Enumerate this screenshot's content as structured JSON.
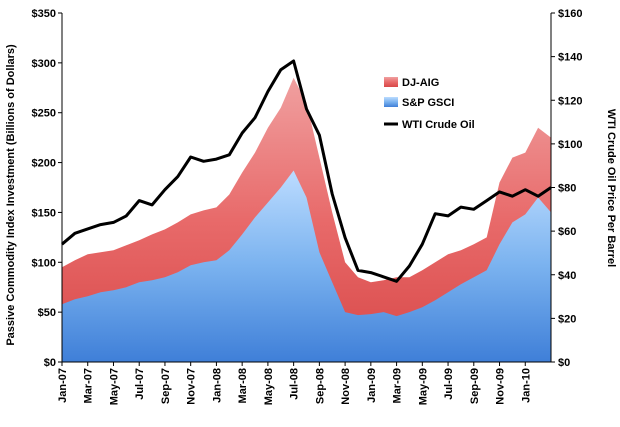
{
  "chart_data": {
    "type": "area",
    "title": "",
    "left_axis_label": "Passive Commodity Index Investment (Billions of Dollars)",
    "right_axis_label": "WTI Crude Oil Price Per Barrel",
    "left_ylim": [
      0,
      350
    ],
    "right_ylim": [
      0,
      160
    ],
    "left_ticks": [
      "$0",
      "$50",
      "$100",
      "$150",
      "$200",
      "$250",
      "$300",
      "$350"
    ],
    "right_ticks": [
      "$0",
      "$20",
      "$40",
      "$60",
      "$80",
      "$100",
      "$120",
      "$140",
      "$160"
    ],
    "x_tick_labels": [
      "Jan-07",
      "Mar-07",
      "May-07",
      "Jul-07",
      "Sep-07",
      "Nov-07",
      "Jan-08",
      "Mar-08",
      "May-08",
      "Jul-08",
      "Sep-08",
      "Nov-08",
      "Jan-09",
      "Mar-09",
      "May-09",
      "Jul-09",
      "Sep-09",
      "Nov-09",
      "Jan-10"
    ],
    "months": [
      "Jan-07",
      "Feb-07",
      "Mar-07",
      "Apr-07",
      "May-07",
      "Jun-07",
      "Jul-07",
      "Aug-07",
      "Sep-07",
      "Oct-07",
      "Nov-07",
      "Dec-07",
      "Jan-08",
      "Feb-08",
      "Mar-08",
      "Apr-08",
      "May-08",
      "Jun-08",
      "Jul-08",
      "Aug-08",
      "Sep-08",
      "Oct-08",
      "Nov-08",
      "Dec-08",
      "Jan-09",
      "Feb-09",
      "Mar-09",
      "Apr-09",
      "May-09",
      "Jun-09",
      "Jul-09",
      "Aug-09",
      "Sep-09",
      "Oct-09",
      "Nov-09",
      "Dec-09",
      "Jan-10",
      "Feb-10",
      "Mar-10"
    ],
    "series": [
      {
        "name": "DJ-AIG",
        "axis": "left",
        "stacked_on": "S&P GSCI",
        "color": "#e8606a",
        "values": [
          95,
          102,
          108,
          110,
          112,
          117,
          122,
          128,
          133,
          140,
          148,
          152,
          155,
          168,
          190,
          210,
          235,
          255,
          285,
          260,
          205,
          150,
          100,
          85,
          80,
          82,
          85,
          85,
          92,
          100,
          108,
          112,
          118,
          125,
          180,
          205,
          210,
          235,
          225
        ]
      },
      {
        "name": "S&P GSCI",
        "axis": "left",
        "color": "#6fa8e8",
        "values": [
          58,
          63,
          66,
          70,
          72,
          75,
          80,
          82,
          85,
          90,
          97,
          100,
          102,
          112,
          128,
          145,
          160,
          175,
          192,
          165,
          110,
          80,
          50,
          47,
          48,
          50,
          46,
          50,
          55,
          62,
          70,
          78,
          85,
          92,
          118,
          140,
          148,
          165,
          150
        ]
      },
      {
        "name": "WTI Crude Oil",
        "axis": "right",
        "color": "#000000",
        "values": [
          54,
          59,
          61,
          63,
          64,
          67,
          74,
          72,
          79,
          85,
          94,
          92,
          93,
          95,
          105,
          112,
          124,
          134,
          138,
          116,
          104,
          77,
          57,
          42,
          41,
          39,
          37,
          44,
          54,
          68,
          67,
          71,
          70,
          74,
          78,
          76,
          79,
          76,
          80
        ]
      }
    ],
    "legend": [
      {
        "label": "DJ-AIG",
        "color": "#e8606a"
      },
      {
        "label": "S&P GSCI",
        "color": "#6fa8e8"
      },
      {
        "label": "WTI Crude Oil",
        "color": "#000000"
      }
    ],
    "legend_position": "top-center",
    "grid": false
  }
}
